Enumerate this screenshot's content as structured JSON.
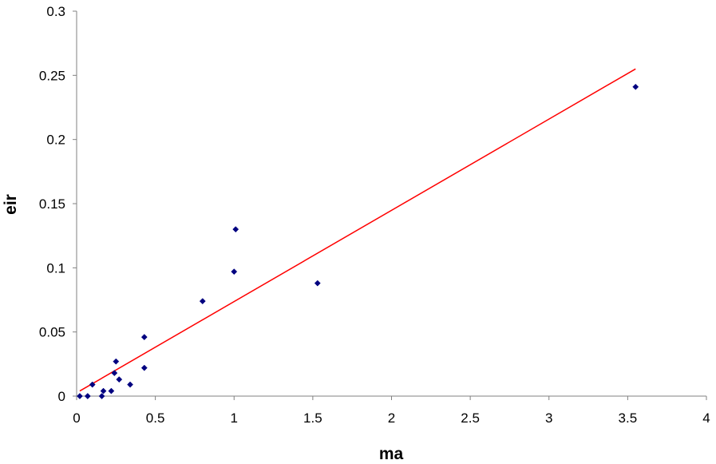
{
  "chart_data": {
    "type": "scatter",
    "title": "",
    "xlabel": "ma",
    "ylabel": "eir",
    "xlim": [
      0,
      4
    ],
    "ylim": [
      0,
      0.3
    ],
    "x_ticks": [
      0,
      0.5,
      1,
      1.5,
      2,
      2.5,
      3,
      3.5,
      4
    ],
    "x_tick_labels": [
      "0",
      "0.5",
      "1",
      "1.5",
      "2",
      "2.5",
      "3",
      "3.5",
      "4"
    ],
    "y_ticks": [
      0,
      0.05,
      0.1,
      0.15,
      0.2,
      0.25,
      0.3
    ],
    "y_tick_labels": [
      "0",
      "0.05",
      "0.1",
      "0.15",
      "0.2",
      "0.25",
      "0.3"
    ],
    "grid": false,
    "legend": "none",
    "series": [
      {
        "marker": "diamond",
        "color": "#000080",
        "points": [
          {
            "x": 0.02,
            "y": 0.0
          },
          {
            "x": 0.07,
            "y": 0.0
          },
          {
            "x": 0.1,
            "y": 0.009
          },
          {
            "x": 0.16,
            "y": 0.0
          },
          {
            "x": 0.17,
            "y": 0.004
          },
          {
            "x": 0.22,
            "y": 0.004
          },
          {
            "x": 0.24,
            "y": 0.018
          },
          {
            "x": 0.25,
            "y": 0.027
          },
          {
            "x": 0.27,
            "y": 0.013
          },
          {
            "x": 0.34,
            "y": 0.009
          },
          {
            "x": 0.43,
            "y": 0.046
          },
          {
            "x": 0.43,
            "y": 0.022
          },
          {
            "x": 0.8,
            "y": 0.074
          },
          {
            "x": 1.0,
            "y": 0.097
          },
          {
            "x": 1.01,
            "y": 0.13
          },
          {
            "x": 1.53,
            "y": 0.088
          },
          {
            "x": 3.55,
            "y": 0.241
          }
        ]
      }
    ],
    "trendline": {
      "type": "linear",
      "color": "#ff0000",
      "x": [
        0.02,
        3.55
      ],
      "y": [
        0.004,
        0.255
      ]
    }
  }
}
